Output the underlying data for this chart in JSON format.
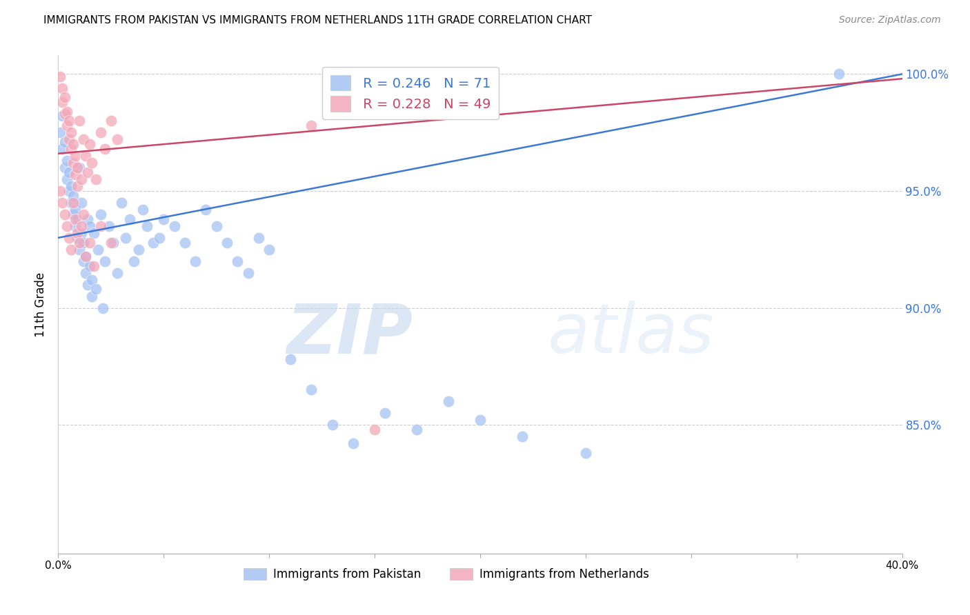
{
  "title": "IMMIGRANTS FROM PAKISTAN VS IMMIGRANTS FROM NETHERLANDS 11TH GRADE CORRELATION CHART",
  "source": "Source: ZipAtlas.com",
  "ylabel": "11th Grade",
  "xlim": [
    0.0,
    0.4
  ],
  "ylim": [
    0.795,
    1.008
  ],
  "yticks": [
    0.85,
    0.9,
    0.95,
    1.0
  ],
  "ytick_labels": [
    "85.0%",
    "90.0%",
    "95.0%",
    "100.0%"
  ],
  "xticks": [
    0.0,
    0.05,
    0.1,
    0.15,
    0.2,
    0.25,
    0.3,
    0.35,
    0.4
  ],
  "xtick_labels": [
    "0.0%",
    "",
    "",
    "",
    "",
    "",
    "",
    "",
    "40.0%"
  ],
  "legend_blue_r": "0.246",
  "legend_blue_n": "71",
  "legend_pink_r": "0.228",
  "legend_pink_n": "49",
  "blue_color": "#a4c2f4",
  "pink_color": "#f4a7b9",
  "line_blue_color": "#3c78d8",
  "line_pink_color": "#cc4466",
  "watermark_zip": "ZIP",
  "watermark_atlas": "atlas",
  "pakistan_x": [
    0.001,
    0.002,
    0.002,
    0.003,
    0.003,
    0.004,
    0.004,
    0.005,
    0.005,
    0.006,
    0.006,
    0.007,
    0.007,
    0.008,
    0.008,
    0.009,
    0.009,
    0.01,
    0.01,
    0.011,
    0.011,
    0.012,
    0.012,
    0.013,
    0.013,
    0.014,
    0.014,
    0.015,
    0.015,
    0.016,
    0.016,
    0.017,
    0.018,
    0.019,
    0.02,
    0.021,
    0.022,
    0.024,
    0.026,
    0.028,
    0.03,
    0.032,
    0.034,
    0.036,
    0.038,
    0.04,
    0.042,
    0.045,
    0.048,
    0.05,
    0.055,
    0.06,
    0.065,
    0.07,
    0.075,
    0.08,
    0.085,
    0.09,
    0.095,
    0.1,
    0.11,
    0.12,
    0.13,
    0.14,
    0.155,
    0.17,
    0.185,
    0.2,
    0.22,
    0.25,
    0.37
  ],
  "pakistan_y": [
    0.975,
    0.982,
    0.968,
    0.96,
    0.971,
    0.955,
    0.963,
    0.95,
    0.958,
    0.945,
    0.952,
    0.94,
    0.948,
    0.935,
    0.942,
    0.93,
    0.938,
    0.96,
    0.925,
    0.932,
    0.945,
    0.92,
    0.928,
    0.915,
    0.922,
    0.938,
    0.91,
    0.918,
    0.935,
    0.905,
    0.912,
    0.932,
    0.908,
    0.925,
    0.94,
    0.9,
    0.92,
    0.935,
    0.928,
    0.915,
    0.945,
    0.93,
    0.938,
    0.92,
    0.925,
    0.942,
    0.935,
    0.928,
    0.93,
    0.938,
    0.935,
    0.928,
    0.92,
    0.942,
    0.935,
    0.928,
    0.92,
    0.915,
    0.93,
    0.925,
    0.878,
    0.865,
    0.85,
    0.842,
    0.855,
    0.848,
    0.86,
    0.852,
    0.845,
    0.838,
    1.0
  ],
  "netherlands_x": [
    0.001,
    0.002,
    0.002,
    0.003,
    0.003,
    0.004,
    0.004,
    0.005,
    0.005,
    0.006,
    0.006,
    0.007,
    0.007,
    0.008,
    0.008,
    0.009,
    0.009,
    0.01,
    0.011,
    0.012,
    0.013,
    0.014,
    0.015,
    0.016,
    0.018,
    0.02,
    0.022,
    0.025,
    0.028,
    0.001,
    0.002,
    0.003,
    0.004,
    0.005,
    0.006,
    0.007,
    0.008,
    0.009,
    0.01,
    0.011,
    0.012,
    0.013,
    0.015,
    0.017,
    0.02,
    0.025,
    0.12,
    0.15,
    0.2
  ],
  "netherlands_y": [
    0.999,
    0.994,
    0.988,
    0.983,
    0.99,
    0.978,
    0.984,
    0.972,
    0.98,
    0.968,
    0.975,
    0.962,
    0.97,
    0.957,
    0.965,
    0.952,
    0.96,
    0.98,
    0.955,
    0.972,
    0.965,
    0.958,
    0.97,
    0.962,
    0.955,
    0.975,
    0.968,
    0.98,
    0.972,
    0.95,
    0.945,
    0.94,
    0.935,
    0.93,
    0.925,
    0.945,
    0.938,
    0.932,
    0.928,
    0.935,
    0.94,
    0.922,
    0.928,
    0.918,
    0.935,
    0.928,
    0.978,
    0.848,
    0.998
  ]
}
